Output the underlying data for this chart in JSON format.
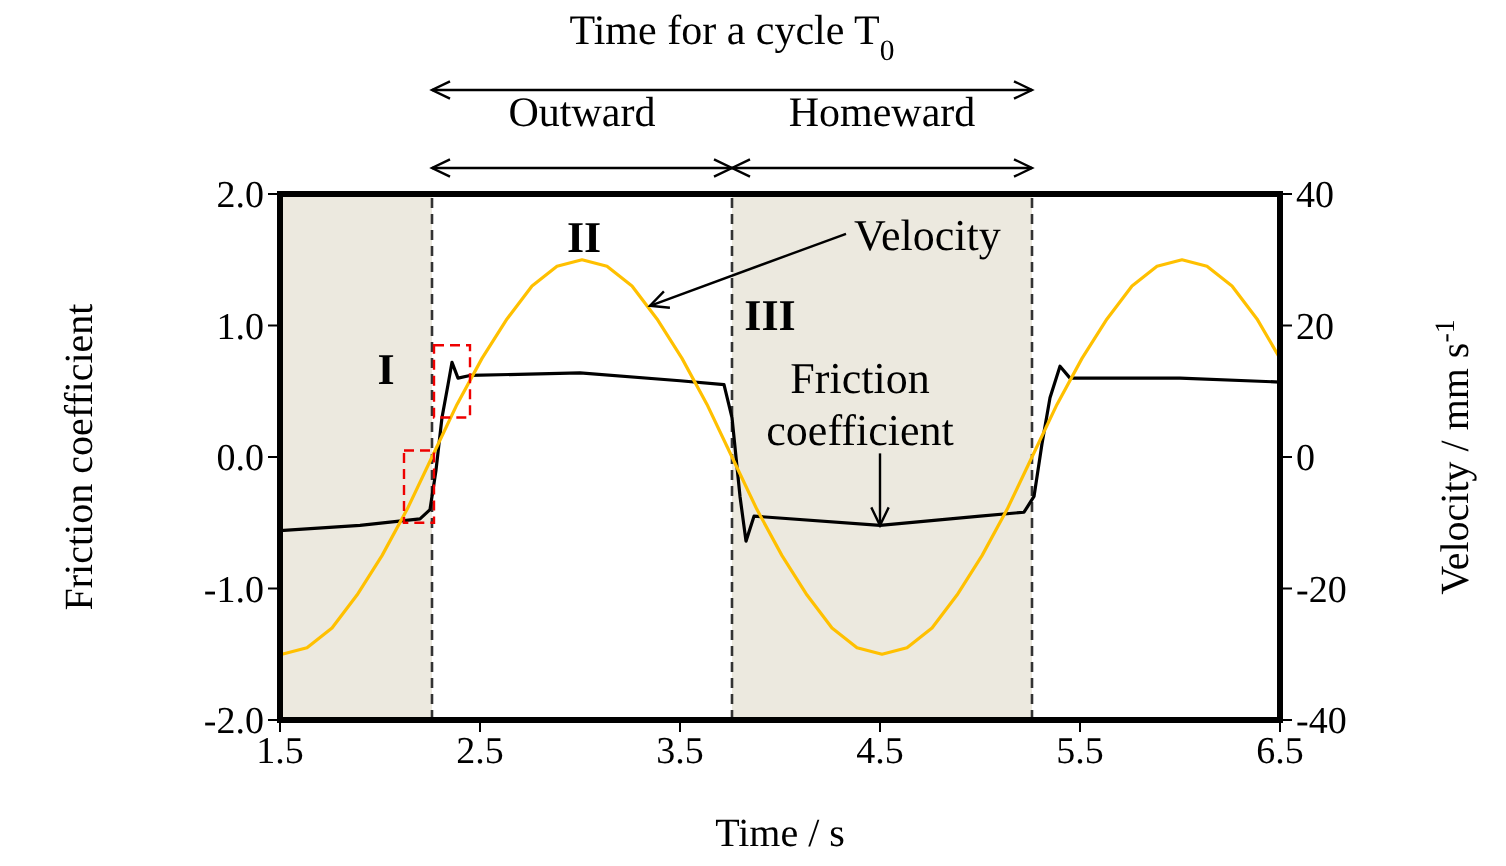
{
  "chart_data": {
    "type": "line",
    "xlabel": "Time / s",
    "ylabel": "Friction coefficient",
    "y2label": "Velocity / mm s$^{-1}$",
    "xlim": [
      1.5,
      6.5
    ],
    "xticks": [
      1.5,
      2.5,
      3.5,
      4.5,
      5.5,
      6.5
    ],
    "ylim": [
      -2,
      2
    ],
    "yticks": [
      {
        "value": -2,
        "label": "-2.0"
      },
      {
        "value": -1,
        "label": "-1.0"
      },
      {
        "value": 0,
        "label": "0.0"
      },
      {
        "value": 1,
        "label": "1.0"
      },
      {
        "value": 2,
        "label": "2.0"
      }
    ],
    "y2lim": [
      -40,
      40
    ],
    "y2ticks": [
      -40,
      -20,
      0,
      20,
      40
    ],
    "series": [
      {
        "color": "#000000",
        "x": [
          1.5,
          1.9,
          2.2,
          2.25,
          2.28,
          2.31,
          2.34,
          2.36,
          2.39,
          2.45,
          3.0,
          3.5,
          3.72,
          3.76,
          3.8,
          3.83,
          3.87,
          4.5,
          5.0,
          5.22,
          5.27,
          5.31,
          5.35,
          5.4,
          5.45,
          6.0,
          6.5
        ],
        "values": [
          -0.56,
          -0.52,
          -0.47,
          -0.4,
          -0.1,
          0.3,
          0.55,
          0.72,
          0.6,
          0.62,
          0.64,
          0.58,
          0.55,
          0.3,
          -0.3,
          -0.64,
          -0.45,
          -0.52,
          -0.45,
          -0.42,
          -0.3,
          0.1,
          0.45,
          0.69,
          0.6,
          0.6,
          0.57
        ]
      },
      {
        "color": "#ffc000",
        "axis": "y2",
        "x": [
          1.51,
          1.635,
          1.76,
          1.885,
          2.01,
          2.135,
          2.26,
          2.385,
          2.51,
          2.635,
          2.76,
          2.885,
          3.01,
          3.135,
          3.26,
          3.385,
          3.51,
          3.635,
          3.76,
          3.885,
          4.01,
          4.135,
          4.26,
          4.385,
          4.51,
          4.635,
          4.76,
          4.885,
          5.01,
          5.135,
          5.26,
          5.385,
          5.51,
          5.635,
          5.76,
          5.885,
          6.01,
          6.135,
          6.26,
          6.385,
          6.5
        ],
        "values": [
          -30,
          -29,
          -26,
          -21,
          -15,
          -8,
          0,
          8,
          15,
          21,
          26,
          29,
          30,
          29,
          26,
          21,
          15,
          8,
          0,
          -8,
          -15,
          -21,
          -26,
          -29,
          -30,
          -29,
          -26,
          -21,
          -15,
          -8,
          0,
          8,
          15,
          21,
          26,
          29,
          30,
          29,
          26,
          21,
          15
        ]
      }
    ],
    "bands": [
      {
        "axis": "x",
        "from": 1.5,
        "to": 2.26,
        "color": "#ece9df"
      },
      {
        "axis": "x",
        "from": 3.76,
        "to": 5.26,
        "color": "#ece9df"
      }
    ],
    "ref_lines": [
      {
        "axis": "x",
        "value": 2.26,
        "color": "#333333",
        "line_style": "dashed"
      },
      {
        "axis": "x",
        "value": 3.76,
        "color": "#333333",
        "line_style": "dashed"
      },
      {
        "axis": "x",
        "value": 5.26,
        "color": "#333333",
        "line_style": "dashed"
      }
    ],
    "annotations": [
      "Time for a cycle T$_{0}$",
      "Outward",
      "Homeward",
      "I",
      "II",
      "III",
      {
        "text": "Velocity",
        "x": 3.35,
        "y": 1.15
      },
      {
        "text": "Friction coefficient",
        "x": 4.5,
        "y": -0.52
      }
    ]
  }
}
